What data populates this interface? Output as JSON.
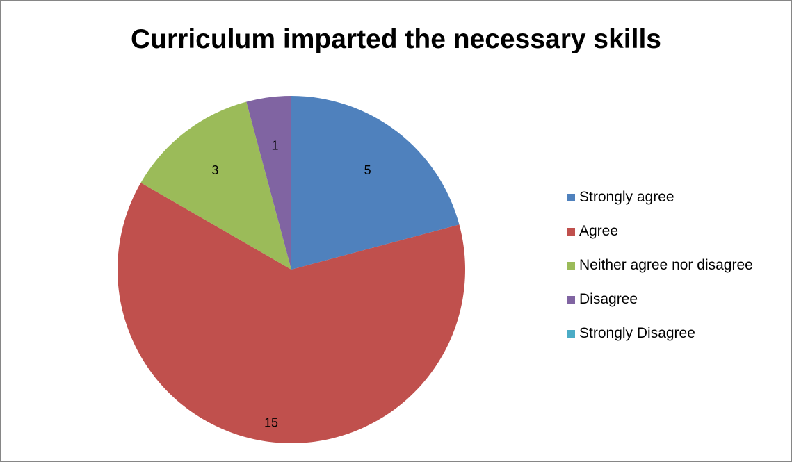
{
  "chart_data": {
    "type": "pie",
    "title": "Curriculum imparted the necessary skills",
    "categories": [
      "Strongly agree",
      "Agree",
      "Neither agree nor disagree",
      "Disagree",
      "Strongly Disagree"
    ],
    "values": [
      5,
      15,
      3,
      1,
      0
    ],
    "data_labels": [
      "5",
      "15",
      "3",
      "1",
      ""
    ],
    "colors": [
      "#4f81bd",
      "#c0504d",
      "#9bbb59",
      "#8064a2",
      "#4bacc6"
    ],
    "legend_position": "right",
    "start_angle": "12 o'clock",
    "direction": "clockwise"
  }
}
